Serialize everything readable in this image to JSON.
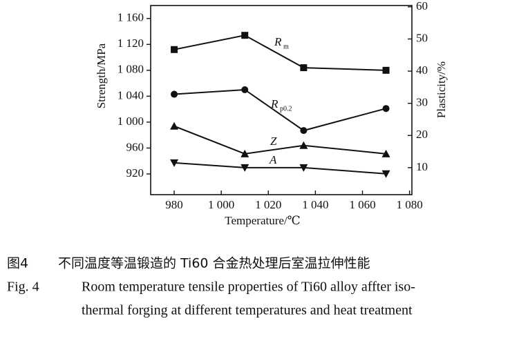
{
  "chart_data": {
    "type": "line",
    "xlabel": "Temperature/℃",
    "ylabel": "Strength/MPa",
    "y2label": "Plasticity/%",
    "x": [
      980,
      1010,
      1035,
      1070
    ],
    "xlim": [
      970,
      1081
    ],
    "xticks": [
      980,
      {
        "value": 1000,
        "label": "1 000"
      },
      {
        "value": 1020,
        "label": "1 020"
      },
      {
        "value": 1040,
        "label": "1 040"
      },
      {
        "value": 1060,
        "label": "1 060"
      },
      {
        "value": 1080,
        "label": "1 080"
      }
    ],
    "ylim": [
      888,
      1180
    ],
    "yticks": [
      920,
      960,
      {
        "value": 1000,
        "label": "1 000"
      },
      {
        "value": 1040,
        "label": "1 040"
      },
      {
        "value": 1080,
        "label": "1 080"
      },
      {
        "value": 1120,
        "label": "1 120"
      },
      {
        "value": 1160,
        "label": "1 160"
      }
    ],
    "y2lim": [
      1.6,
      60.4
    ],
    "y2ticks": [
      10,
      20,
      30,
      40,
      50,
      60
    ],
    "series": [
      {
        "label": "R",
        "label_sub": "m",
        "marker": "square",
        "color": "#111111",
        "values": [
          1112,
          1134,
          1084,
          1080
        ]
      },
      {
        "label": "R",
        "label_sub": "p0.2",
        "marker": "circle",
        "color": "#111111",
        "values": [
          1043,
          1050,
          987,
          1021
        ]
      },
      {
        "label": "Z",
        "marker": "triangle-up",
        "color": "#111111",
        "axis": "y2",
        "values": [
          22.9,
          14.3,
          16.9,
          14.3
        ]
      },
      {
        "label": "A",
        "marker": "triangle-down",
        "color": "#111111",
        "axis": "y2",
        "values": [
          11.5,
          10,
          10,
          8.1
        ]
      }
    ]
  },
  "caption": {
    "zh_label": "图4",
    "zh_text": "不同温度等温锻造的 Ti60 合金热处理后室温拉伸性能",
    "en_label": "Fig. 4",
    "en_lines": [
      "Room temperature tensile properties of Ti60 alloy affter iso-",
      "thermal forging at different temperatures and heat treatment"
    ]
  }
}
